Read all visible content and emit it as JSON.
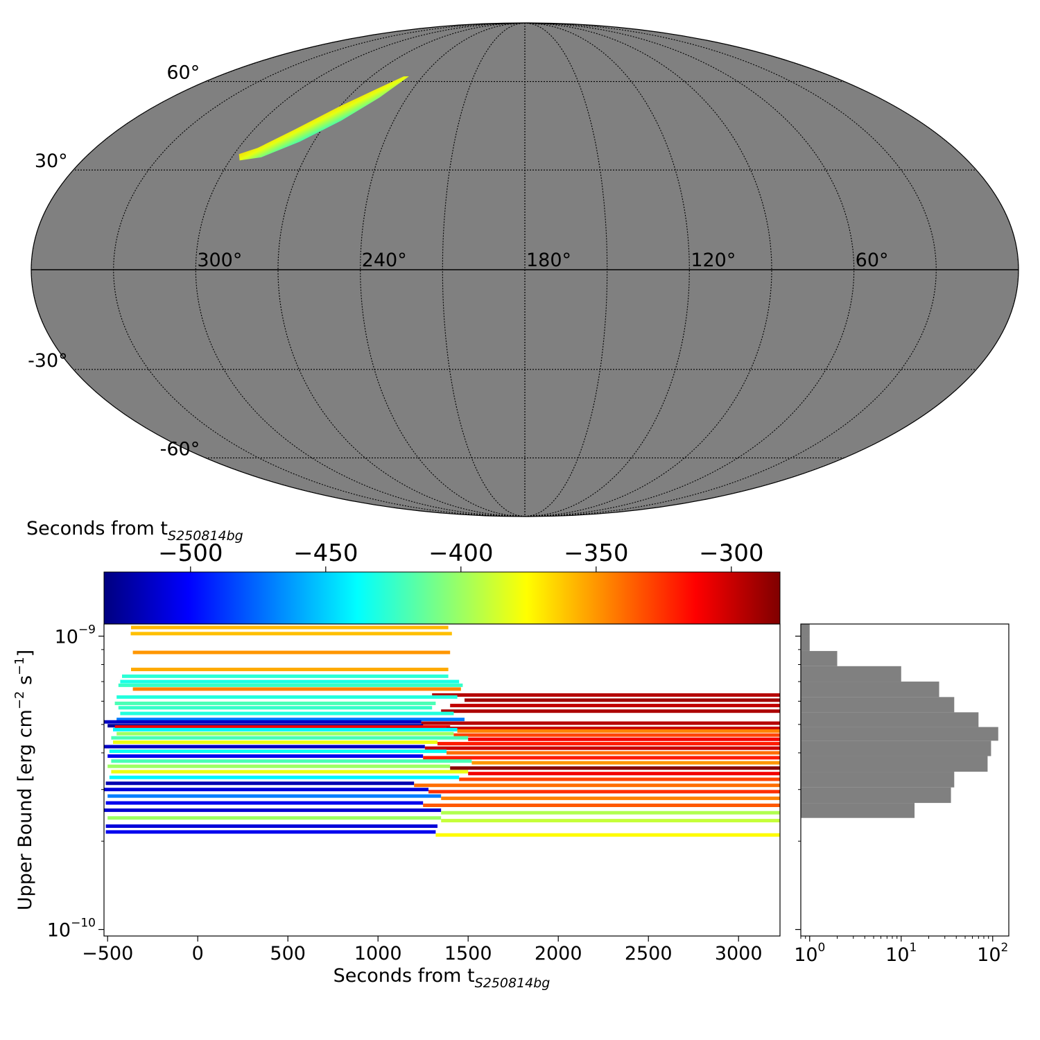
{
  "chart_data": [
    {
      "type": "heatmap",
      "projection": "mollweide",
      "background_color": "#808080",
      "grid": true,
      "lon_tick_labels": [
        "300°",
        "240°",
        "180°",
        "120°",
        "60°"
      ],
      "lat_tick_labels": [
        "60°",
        "30°",
        "-30°",
        "-60°"
      ],
      "lon_values": [
        300,
        240,
        180,
        120,
        60
      ],
      "lat_values": [
        60,
        30,
        -30,
        -60
      ],
      "region": {
        "lon_range": [
          248,
          298
        ],
        "lat_range": [
          33,
          62
        ],
        "colormap": "jet",
        "color_direction": "blue (southeast edge) to red (northwest edge)"
      }
    },
    {
      "type": "bar",
      "orientation": "horizontal",
      "x_scale": "linear",
      "y_scale": "log",
      "xlabel": "Seconds from t",
      "xlabel_sub": "S250814bg",
      "ylabel": "Upper Bound [erg cm",
      "ylabel_sup1": "−2",
      "ylabel_mid": " s",
      "ylabel_sup2": "−1",
      "ylabel_end": "]",
      "xlim": [
        -520,
        3230
      ],
      "ylim": [
        9.5e-11,
        1.1e-09
      ],
      "xticks": [
        -500,
        0,
        500,
        1000,
        1500,
        2000,
        2500,
        3000
      ],
      "xtick_labels": [
        "−500",
        "0",
        "500",
        "1000",
        "1500",
        "2000",
        "2500",
        "3000"
      ],
      "yticks": [
        1e-10,
        1e-09
      ],
      "ytick_labels": [
        {
          "base": "10",
          "exp": "−10"
        },
        {
          "base": "10",
          "exp": "−9"
        }
      ],
      "colorbar": {
        "colormap": "jet",
        "range": [
          -532,
          -282
        ],
        "ticks": [
          -500,
          -450,
          -400,
          -350,
          -300
        ],
        "tick_labels": [
          "−500",
          "−450",
          "−400",
          "−350",
          "−300"
        ],
        "label": "Seconds from t",
        "label_sub": "S250814bg",
        "position": "top"
      },
      "series": [
        {
          "start": -370,
          "stop": 1390,
          "upper_bound": 1.07e-09,
          "tstart": -358
        },
        {
          "start": -372,
          "stop": 1410,
          "upper_bound": 1.02e-09,
          "tstart": -360
        },
        {
          "start": -360,
          "stop": 1400,
          "upper_bound": 8.8e-10,
          "tstart": -350
        },
        {
          "start": -370,
          "stop": 1390,
          "upper_bound": 7.7e-10,
          "tstart": -355
        },
        {
          "start": -420,
          "stop": 1390,
          "upper_bound": 7.3e-10,
          "tstart": -428
        },
        {
          "start": -430,
          "stop": 1450,
          "upper_bound": 7e-10,
          "tstart": -432
        },
        {
          "start": -440,
          "stop": 1470,
          "upper_bound": 6.8e-10,
          "tstart": -425
        },
        {
          "start": -360,
          "stop": 1460,
          "upper_bound": 6.6e-10,
          "tstart": -345
        },
        {
          "start": 1300,
          "stop": 3230,
          "upper_bound": 6.3e-10,
          "tstart": -295
        },
        {
          "start": -450,
          "stop": 1440,
          "upper_bound": 6.2e-10,
          "tstart": -430
        },
        {
          "start": 1480,
          "stop": 3230,
          "upper_bound": 6.05e-10,
          "tstart": -290
        },
        {
          "start": -460,
          "stop": 1320,
          "upper_bound": 5.9e-10,
          "tstart": -420
        },
        {
          "start": 1400,
          "stop": 3230,
          "upper_bound": 5.8e-10,
          "tstart": -298
        },
        {
          "start": -440,
          "stop": 1300,
          "upper_bound": 5.7e-10,
          "tstart": -425
        },
        {
          "start": 1350,
          "stop": 3230,
          "upper_bound": 5.55e-10,
          "tstart": -293
        },
        {
          "start": -430,
          "stop": 1420,
          "upper_bound": 5.45e-10,
          "tstart": -430
        },
        {
          "start": -450,
          "stop": 1480,
          "upper_bound": 5.2e-10,
          "tstart": -470
        },
        {
          "start": -520,
          "stop": 1240,
          "upper_bound": 5.1e-10,
          "tstart": -515
        },
        {
          "start": 1240,
          "stop": 3230,
          "upper_bound": 5.05e-10,
          "tstart": -295
        },
        {
          "start": -500,
          "stop": 1250,
          "upper_bound": 4.95e-10,
          "tstart": -525
        },
        {
          "start": -460,
          "stop": 1400,
          "upper_bound": 4.9e-10,
          "tstart": -310
        },
        {
          "start": 1380,
          "stop": 3230,
          "upper_bound": 4.85e-10,
          "tstart": -300
        },
        {
          "start": -470,
          "stop": 1440,
          "upper_bound": 4.8e-10,
          "tstart": -440
        },
        {
          "start": 1440,
          "stop": 3230,
          "upper_bound": 4.75e-10,
          "tstart": -345
        },
        {
          "start": -450,
          "stop": 1420,
          "upper_bound": 4.65e-10,
          "tstart": -400
        },
        {
          "start": 1420,
          "stop": 3230,
          "upper_bound": 4.6e-10,
          "tstart": -330
        },
        {
          "start": -480,
          "stop": 1500,
          "upper_bound": 4.5e-10,
          "tstart": -420
        },
        {
          "start": 1500,
          "stop": 3230,
          "upper_bound": 4.45e-10,
          "tstart": -310
        },
        {
          "start": -470,
          "stop": 1330,
          "upper_bound": 4.35e-10,
          "tstart": -380
        },
        {
          "start": 1330,
          "stop": 3230,
          "upper_bound": 4.3e-10,
          "tstart": -320
        },
        {
          "start": -530,
          "stop": 1260,
          "upper_bound": 4.2e-10,
          "tstart": -515
        },
        {
          "start": 1260,
          "stop": 3230,
          "upper_bound": 4.15e-10,
          "tstart": -300
        },
        {
          "start": -490,
          "stop": 1380,
          "upper_bound": 4.05e-10,
          "tstart": -435
        },
        {
          "start": 1380,
          "stop": 3230,
          "upper_bound": 4e-10,
          "tstart": -340
        },
        {
          "start": -500,
          "stop": 1250,
          "upper_bound": 3.9e-10,
          "tstart": -505
        },
        {
          "start": 1250,
          "stop": 3230,
          "upper_bound": 3.85e-10,
          "tstart": -320
        },
        {
          "start": -480,
          "stop": 1520,
          "upper_bound": 3.75e-10,
          "tstart": -420
        },
        {
          "start": 1520,
          "stop": 3230,
          "upper_bound": 3.7e-10,
          "tstart": -350
        },
        {
          "start": -500,
          "stop": 1400,
          "upper_bound": 3.6e-10,
          "tstart": -400
        },
        {
          "start": 1400,
          "stop": 3230,
          "upper_bound": 3.55e-10,
          "tstart": -284
        },
        {
          "start": -480,
          "stop": 1500,
          "upper_bound": 3.45e-10,
          "tstart": -380
        },
        {
          "start": 1500,
          "stop": 3230,
          "upper_bound": 3.4e-10,
          "tstart": -310
        },
        {
          "start": -490,
          "stop": 1450,
          "upper_bound": 3.3e-10,
          "tstart": -440
        },
        {
          "start": 1450,
          "stop": 3230,
          "upper_bound": 3.25e-10,
          "tstart": -330
        },
        {
          "start": -510,
          "stop": 1200,
          "upper_bound": 3.15e-10,
          "tstart": -520
        },
        {
          "start": 1200,
          "stop": 3230,
          "upper_bound": 3.1e-10,
          "tstart": -340
        },
        {
          "start": -520,
          "stop": 1280,
          "upper_bound": 3e-10,
          "tstart": -510
        },
        {
          "start": 1280,
          "stop": 3230,
          "upper_bound": 2.95e-10,
          "tstart": -325
        },
        {
          "start": -500,
          "stop": 1350,
          "upper_bound": 2.85e-10,
          "tstart": -470
        },
        {
          "start": 1350,
          "stop": 3230,
          "upper_bound": 2.8e-10,
          "tstart": -345
        },
        {
          "start": -510,
          "stop": 1250,
          "upper_bound": 2.7e-10,
          "tstart": -505
        },
        {
          "start": 1250,
          "stop": 3230,
          "upper_bound": 2.65e-10,
          "tstart": -335
        },
        {
          "start": -520,
          "stop": 1350,
          "upper_bound": 2.55e-10,
          "tstart": -512
        },
        {
          "start": 1350,
          "stop": 3230,
          "upper_bound": 2.5e-10,
          "tstart": -395
        },
        {
          "start": -500,
          "stop": 1350,
          "upper_bound": 2.4e-10,
          "tstart": -400
        },
        {
          "start": 1350,
          "stop": 3230,
          "upper_bound": 2.35e-10,
          "tstart": -390
        },
        {
          "start": -510,
          "stop": 1330,
          "upper_bound": 2.25e-10,
          "tstart": -510
        },
        {
          "start": -510,
          "stop": 1320,
          "upper_bound": 2.15e-10,
          "tstart": -505
        },
        {
          "start": 1320,
          "stop": 3230,
          "upper_bound": 2.1e-10,
          "tstart": -375
        }
      ]
    },
    {
      "type": "bar",
      "orientation": "horizontal",
      "x_scale": "log",
      "y_scale": "log",
      "bar_color": "#808080",
      "xlim": [
        0.8,
        150
      ],
      "ylim": [
        9.5e-11,
        1.1e-09
      ],
      "xticks": [
        1,
        10,
        100
      ],
      "xtick_labels": [
        {
          "base": "10",
          "exp": "0"
        },
        {
          "base": "10",
          "exp": "1"
        },
        {
          "base": "10",
          "exp": "2"
        }
      ],
      "bins": [
        {
          "lo": 1e-09,
          "hi": 1.1e-09,
          "count": 1
        },
        {
          "lo": 8.9e-10,
          "hi": 1e-09,
          "count": 1
        },
        {
          "lo": 7.9e-10,
          "hi": 8.9e-10,
          "count": 2
        },
        {
          "lo": 7e-10,
          "hi": 7.9e-10,
          "count": 10
        },
        {
          "lo": 6.2e-10,
          "hi": 7e-10,
          "count": 26
        },
        {
          "lo": 5.5e-10,
          "hi": 6.2e-10,
          "count": 38
        },
        {
          "lo": 4.9e-10,
          "hi": 5.5e-10,
          "count": 70
        },
        {
          "lo": 4.4e-10,
          "hi": 4.9e-10,
          "count": 115
        },
        {
          "lo": 3.9e-10,
          "hi": 4.4e-10,
          "count": 96
        },
        {
          "lo": 3.45e-10,
          "hi": 3.9e-10,
          "count": 88
        },
        {
          "lo": 3.05e-10,
          "hi": 3.45e-10,
          "count": 38
        },
        {
          "lo": 2.7e-10,
          "hi": 3.05e-10,
          "count": 35
        },
        {
          "lo": 2.4e-10,
          "hi": 2.7e-10,
          "count": 14
        }
      ]
    }
  ]
}
